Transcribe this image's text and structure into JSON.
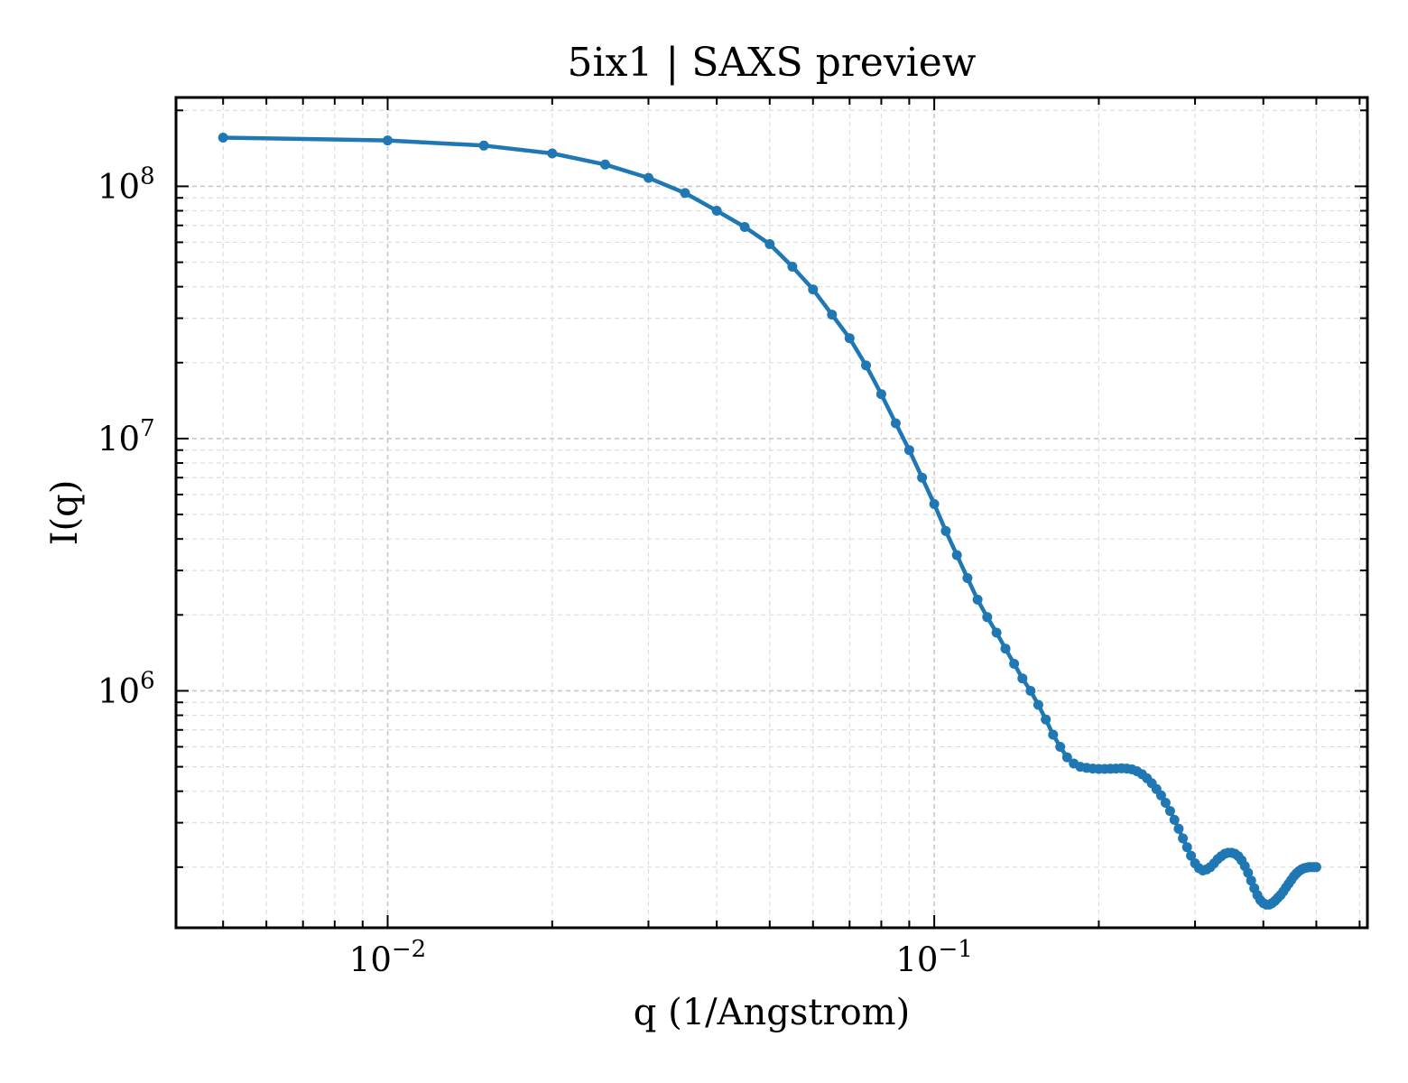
{
  "chart_data": {
    "type": "line",
    "title": "5ix1 | SAXS preview",
    "xlabel": "q (1/Angstrom)",
    "ylabel": "I(q)",
    "xscale": "log",
    "yscale": "log",
    "xlim": [
      0.0041,
      0.62
    ],
    "ylim": [
      115000,
      225000000
    ],
    "grid": true,
    "legend": "none",
    "x_ticks": [
      {
        "value": 0.01,
        "base": "10",
        "exp": "−2"
      },
      {
        "value": 0.1,
        "base": "10",
        "exp": "−1"
      }
    ],
    "y_ticks": [
      {
        "value": 1000000,
        "base": "10",
        "exp": "6"
      },
      {
        "value": 10000000,
        "base": "10",
        "exp": "7"
      },
      {
        "value": 100000000,
        "base": "10",
        "exp": "8"
      }
    ],
    "series": [
      {
        "color": "#1f77b4",
        "x": [
          0.005,
          0.01,
          0.015,
          0.02,
          0.025,
          0.03,
          0.035,
          0.04,
          0.045,
          0.05,
          0.055,
          0.06,
          0.065,
          0.07,
          0.075,
          0.08,
          0.085,
          0.09,
          0.095,
          0.1,
          0.105,
          0.11,
          0.115,
          0.12,
          0.125,
          0.13,
          0.135,
          0.14,
          0.145,
          0.15,
          0.155,
          0.16,
          0.165,
          0.17,
          0.175,
          0.18,
          0.185,
          0.19,
          0.195,
          0.2,
          0.205,
          0.21,
          0.215,
          0.22,
          0.225,
          0.23,
          0.235,
          0.24,
          0.245,
          0.25,
          0.255,
          0.26,
          0.265,
          0.27,
          0.275,
          0.28,
          0.285,
          0.29,
          0.295,
          0.3,
          0.305,
          0.31,
          0.315,
          0.32,
          0.325,
          0.33,
          0.335,
          0.34,
          0.345,
          0.35,
          0.355,
          0.36,
          0.365,
          0.37,
          0.375,
          0.38,
          0.385,
          0.39,
          0.395,
          0.4,
          0.405,
          0.41,
          0.415,
          0.42,
          0.425,
          0.43,
          0.435,
          0.44,
          0.445,
          0.45,
          0.455,
          0.46,
          0.465,
          0.47,
          0.475,
          0.48,
          0.485,
          0.49,
          0.495,
          0.5
        ],
        "y": [
          156000000,
          152000000,
          145000000,
          135000000,
          122000000,
          108000000,
          94000000,
          80000000,
          69000000,
          59000000,
          48000000,
          39000000,
          31000000,
          25000000,
          19500000,
          15000000,
          11500000,
          9000000,
          7000000,
          5500000,
          4300000,
          3450000,
          2800000,
          2300000,
          1960000,
          1700000,
          1470000,
          1280000,
          1120000,
          1000000,
          880000,
          770000,
          670000,
          600000,
          545000,
          515000,
          500000,
          495000,
          492000,
          490000,
          490000,
          491000,
          492000,
          493000,
          492000,
          488000,
          480000,
          467000,
          450000,
          430000,
          408000,
          385000,
          360000,
          334000,
          308000,
          284000,
          260000,
          240000,
          222000,
          207000,
          198000,
          194000,
          196000,
          200000,
          207000,
          215000,
          221000,
          226000,
          228000,
          228000,
          226000,
          221000,
          213000,
          202000,
          190000,
          177000,
          165000,
          155000,
          148000,
          144000,
          142000,
          142000,
          144000,
          147000,
          151000,
          155000,
          160000,
          166000,
          172000,
          178000,
          184000,
          189000,
          193000,
          196000,
          198000,
          199000,
          200000,
          200000,
          200000,
          200000
        ]
      }
    ]
  }
}
